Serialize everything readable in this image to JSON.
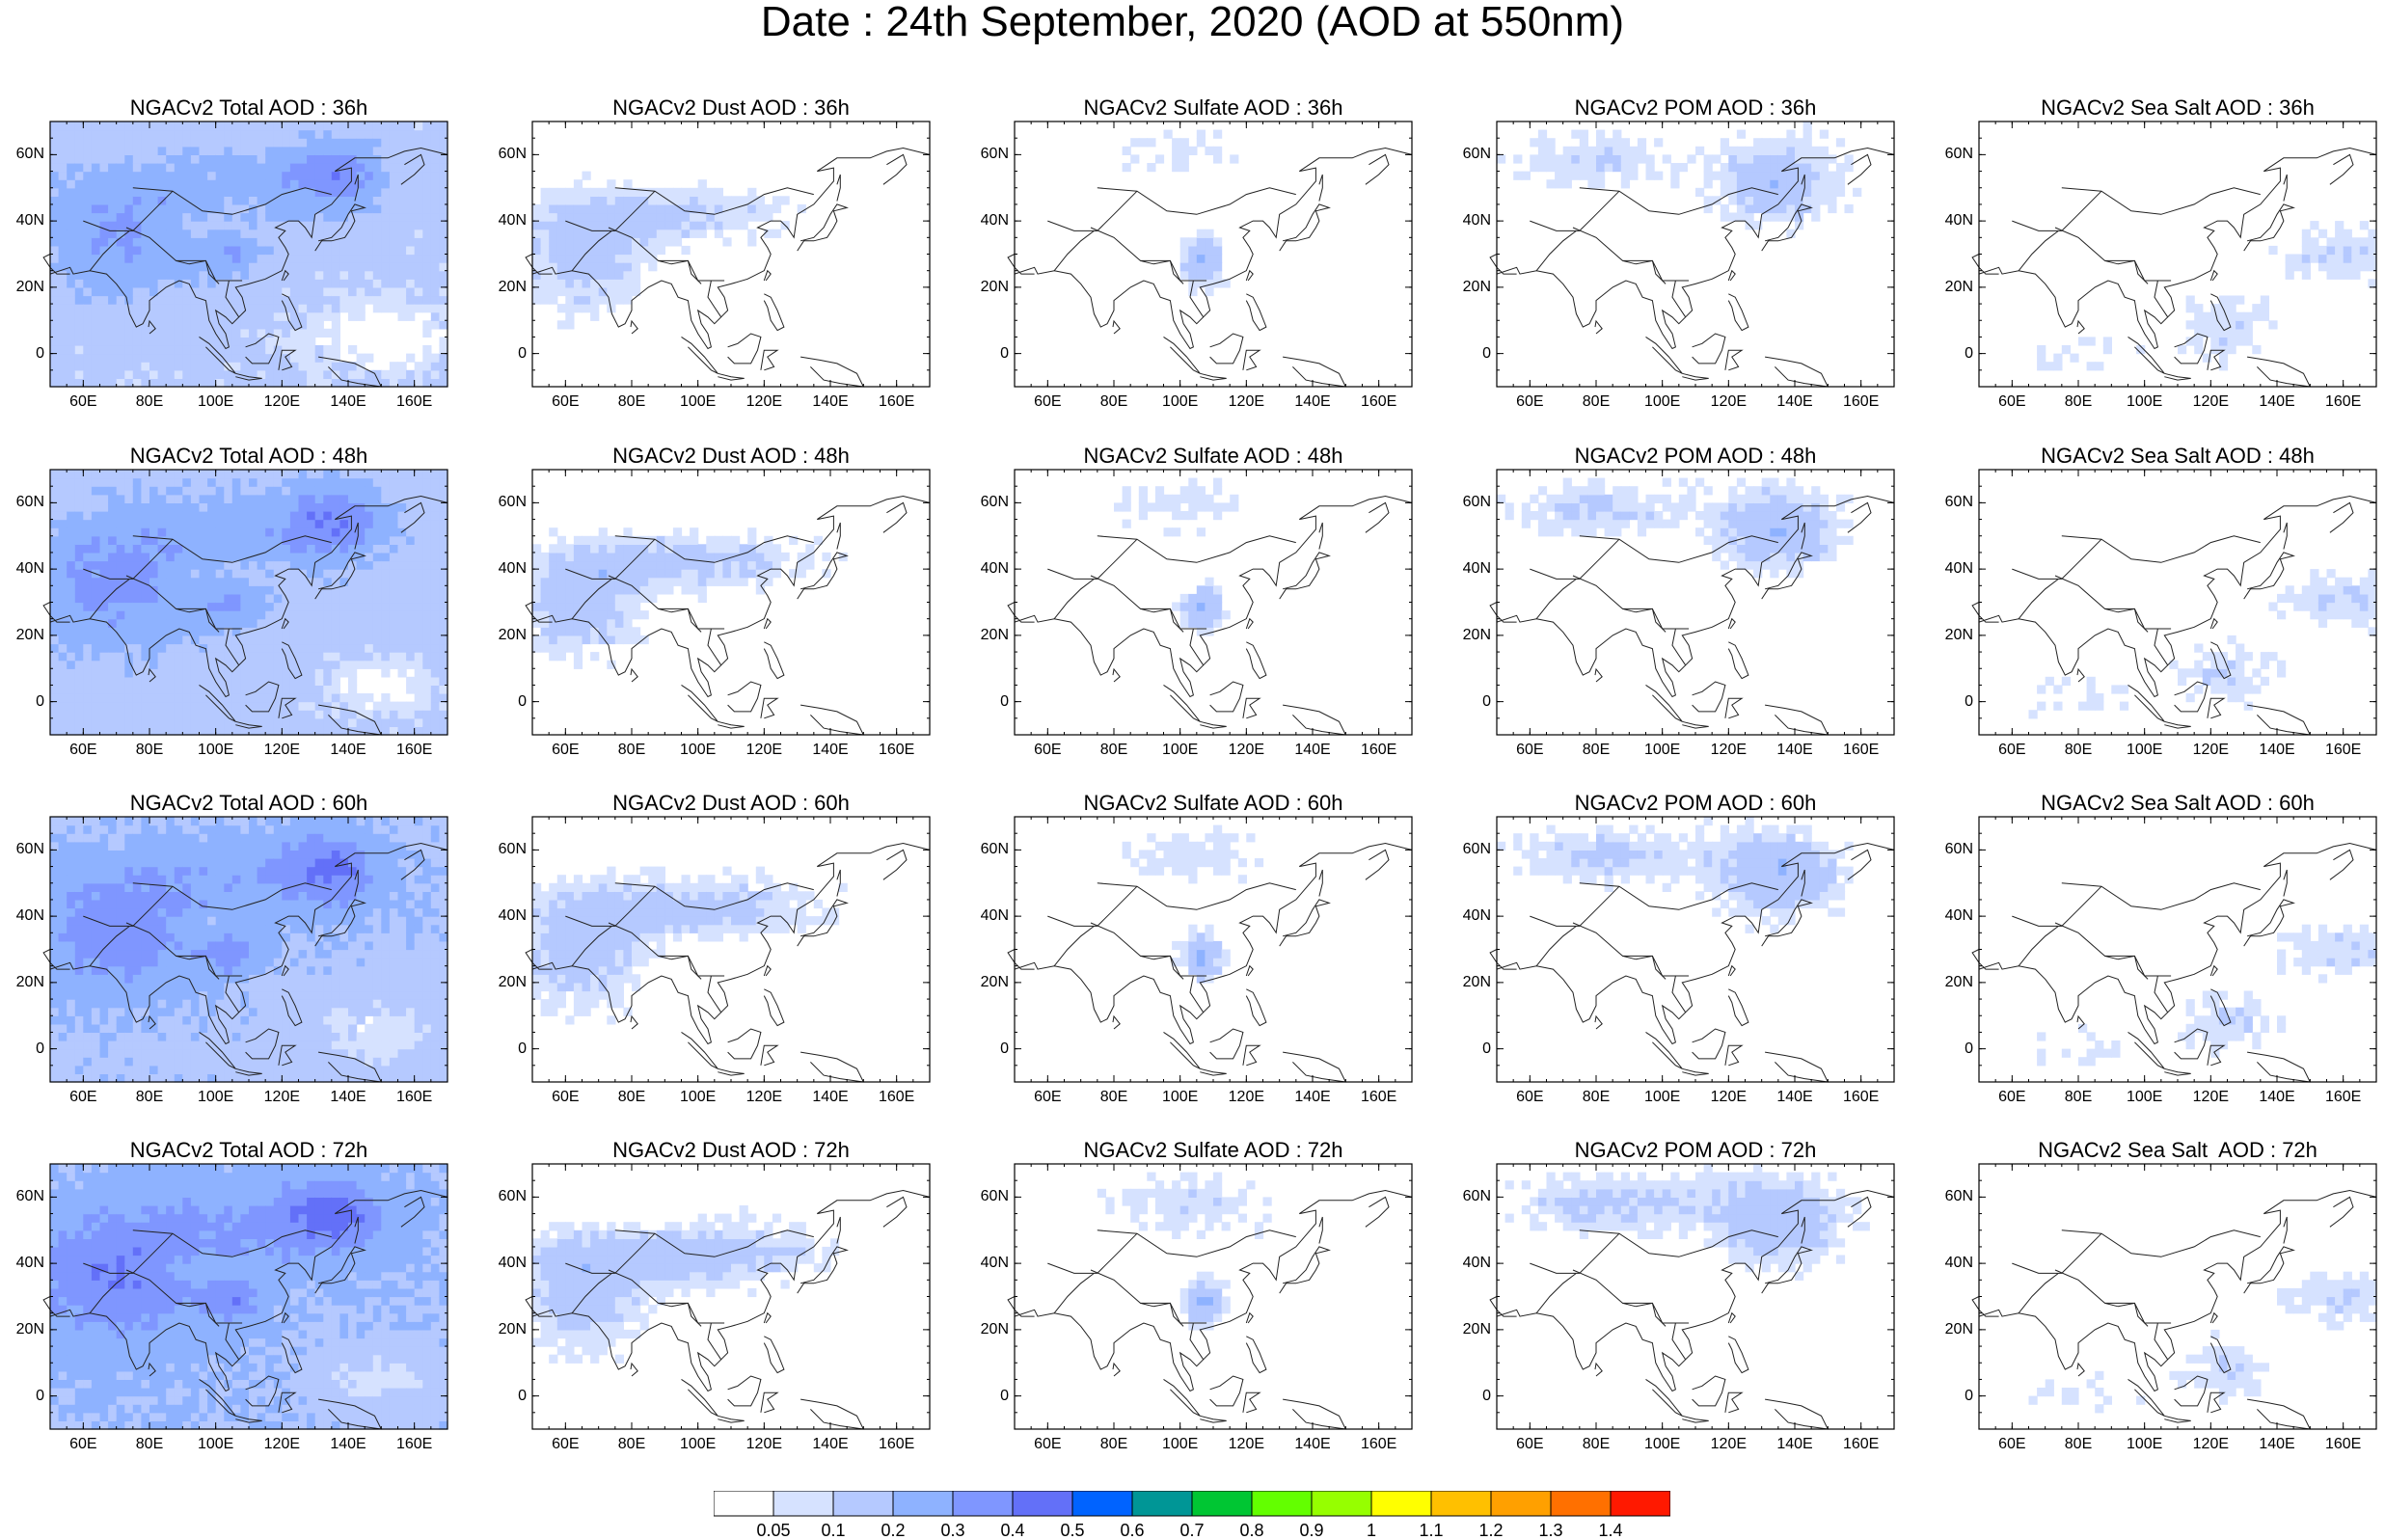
{
  "figure": {
    "title": "Date : 24th  September, 2020 (AOD at 550nm)"
  },
  "axes": {
    "lon_ticks": [
      "60E",
      "80E",
      "100E",
      "120E",
      "140E",
      "160E"
    ],
    "lat_ticks": [
      "60N",
      "40N",
      "20N",
      "0"
    ],
    "lon_range": [
      50,
      170
    ],
    "lat_range": [
      -10,
      70
    ]
  },
  "panels": [
    {
      "title": "NGACv2 Total AOD : 36h",
      "species": "total",
      "hour": 36
    },
    {
      "title": "NGACv2 Dust AOD : 36h",
      "species": "dust",
      "hour": 36
    },
    {
      "title": "NGACv2 Sulfate AOD : 36h",
      "species": "sulfate",
      "hour": 36
    },
    {
      "title": "NGACv2 POM AOD : 36h",
      "species": "pom",
      "hour": 36
    },
    {
      "title": "NGACv2 Sea Salt AOD : 36h",
      "species": "seasalt",
      "hour": 36
    },
    {
      "title": "NGACv2 Total AOD : 48h",
      "species": "total",
      "hour": 48
    },
    {
      "title": "NGACv2 Dust AOD : 48h",
      "species": "dust",
      "hour": 48
    },
    {
      "title": "NGACv2 Sulfate AOD : 48h",
      "species": "sulfate",
      "hour": 48
    },
    {
      "title": "NGACv2 POM AOD : 48h",
      "species": "pom",
      "hour": 48
    },
    {
      "title": "NGACv2 Sea Salt AOD : 48h",
      "species": "seasalt",
      "hour": 48
    },
    {
      "title": "NGACv2 Total AOD : 60h",
      "species": "total",
      "hour": 60
    },
    {
      "title": "NGACv2 Dust AOD : 60h",
      "species": "dust",
      "hour": 60
    },
    {
      "title": "NGACv2 Sulfate AOD : 60h",
      "species": "sulfate",
      "hour": 60
    },
    {
      "title": "NGACv2 POM AOD : 60h",
      "species": "pom",
      "hour": 60
    },
    {
      "title": "NGACv2 Sea Salt AOD : 60h",
      "species": "seasalt",
      "hour": 60
    },
    {
      "title": "NGACv2 Total AOD : 72h",
      "species": "total",
      "hour": 72
    },
    {
      "title": "NGACv2 Dust AOD : 72h",
      "species": "dust",
      "hour": 72
    },
    {
      "title": "NGACv2 Sulfate AOD : 72h",
      "species": "sulfate",
      "hour": 72
    },
    {
      "title": "NGACv2 POM AOD : 72h",
      "species": "pom",
      "hour": 72
    },
    {
      "title": "NGACv2 Sea Salt  AOD : 72h",
      "species": "seasalt",
      "hour": 72
    }
  ],
  "colorbar": {
    "labels": [
      "0.05",
      "0.1",
      "0.2",
      "0.3",
      "0.4",
      "0.5",
      "0.6",
      "0.7",
      "0.8",
      "0.9",
      "1",
      "1.1",
      "1.2",
      "1.3",
      "1.4"
    ],
    "colors": [
      "#ffffff",
      "#d6e2ff",
      "#b5c9ff",
      "#8eb2ff",
      "#7f96ff",
      "#6370f8",
      "#0063ff",
      "#009696",
      "#00c633",
      "#63ff00",
      "#96ff00",
      "#ffff00",
      "#ffc000",
      "#ffa000",
      "#ff7000",
      "#ff1900"
    ]
  }
}
